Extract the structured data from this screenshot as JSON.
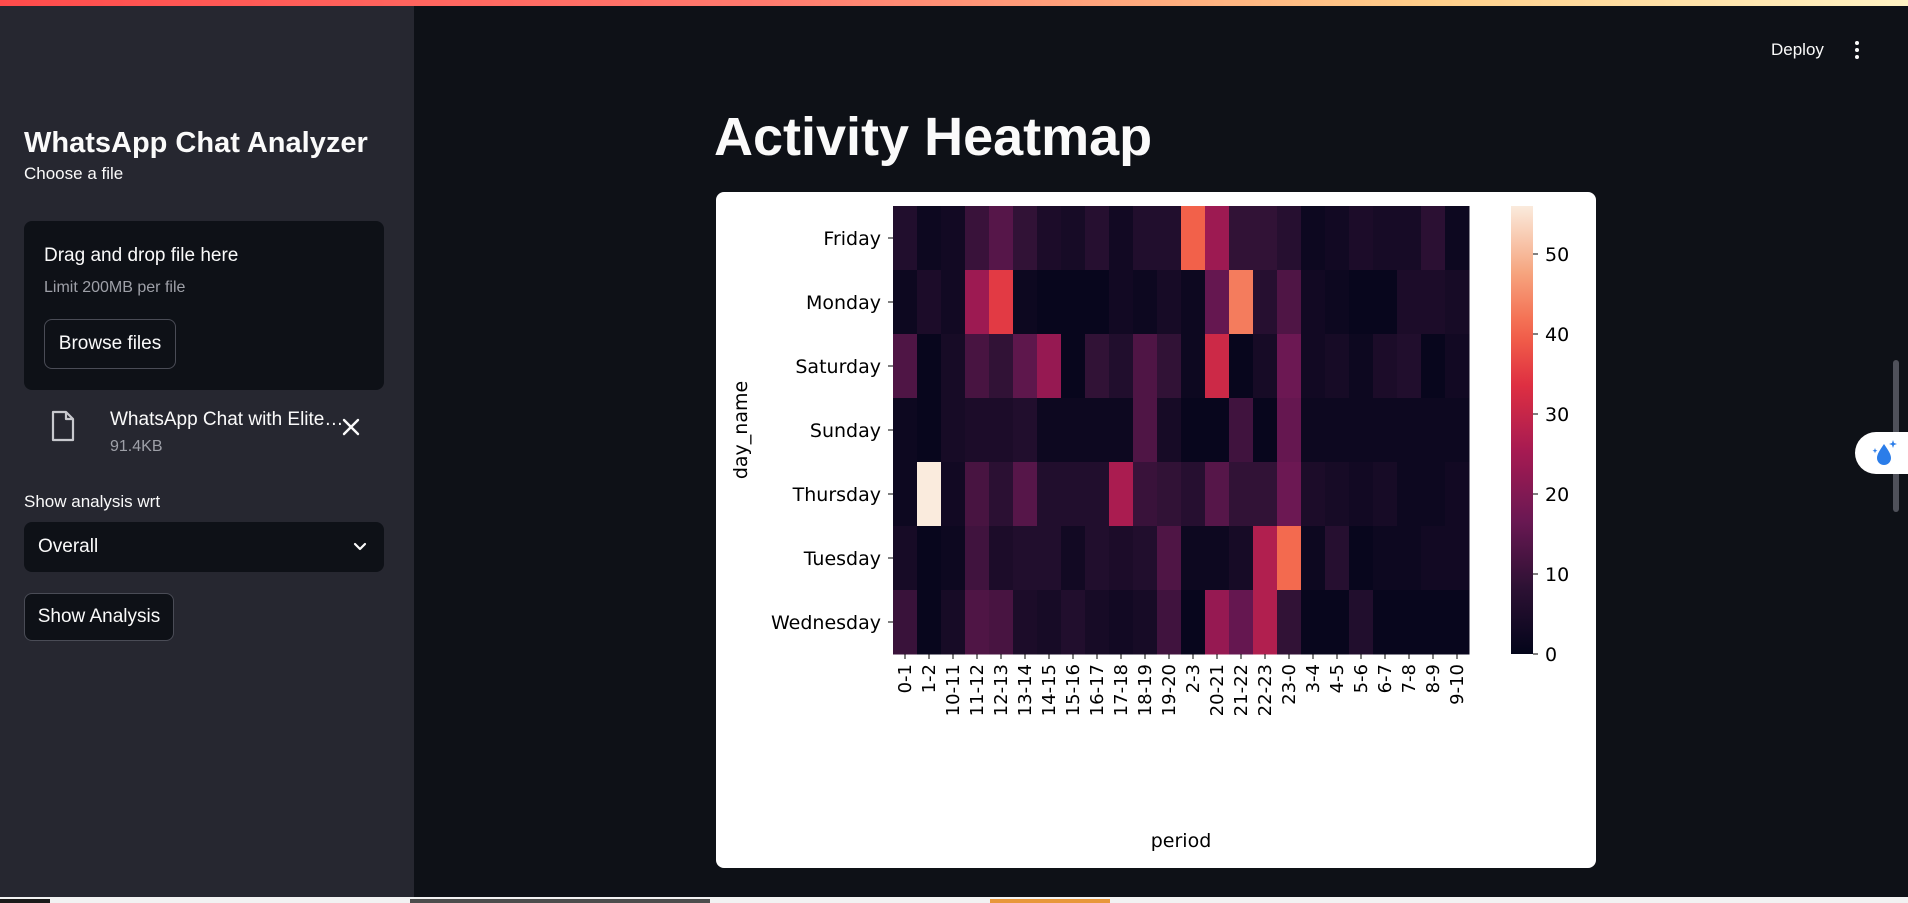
{
  "sidebar": {
    "title": "WhatsApp Chat Analyzer",
    "file_label": "Choose a file",
    "uploader": {
      "drop_text": "Drag and drop file here",
      "limit_text": "Limit 200MB per file",
      "browse_label": "Browse files"
    },
    "file": {
      "name": "WhatsApp Chat with Elite…",
      "size": "91.4KB",
      "icon": "file-icon"
    },
    "select_label": "Show analysis wrt",
    "select_value": "Overall",
    "show_button": "Show Analysis"
  },
  "header": {
    "deploy_label": "Deploy",
    "menu_icon": "vertical-dots-icon"
  },
  "main": {
    "title": "Activity Heatmap"
  },
  "colors": {
    "sidebar_bg": "#262730",
    "main_bg": "#0e1117",
    "accent": "#ff4b4b"
  },
  "chart_data": {
    "type": "heatmap",
    "xlabel": "period",
    "ylabel": "day_name",
    "x": [
      "0-1",
      "1-2",
      "10-11",
      "11-12",
      "12-13",
      "13-14",
      "14-15",
      "15-16",
      "16-17",
      "17-18",
      "18-19",
      "19-20",
      "2-3",
      "20-21",
      "21-22",
      "22-23",
      "23-0",
      "3-4",
      "4-5",
      "5-6",
      "6-7",
      "7-8",
      "8-9",
      "9-10"
    ],
    "y": [
      "Friday",
      "Monday",
      "Saturday",
      "Sunday",
      "Thursday",
      "Tuesday",
      "Wednesday"
    ],
    "values": [
      [
        6,
        2,
        3,
        10,
        14,
        9,
        5,
        4,
        7,
        3,
        6,
        6,
        40,
        24,
        9,
        9,
        7,
        2,
        3,
        5,
        4,
        4,
        8,
        2
      ],
      [
        2,
        5,
        3,
        24,
        35,
        2,
        1,
        1,
        1,
        3,
        2,
        4,
        2,
        16,
        43,
        7,
        13,
        3,
        2,
        1,
        1,
        5,
        5,
        4
      ],
      [
        13,
        1,
        4,
        12,
        9,
        15,
        23,
        1,
        9,
        6,
        13,
        9,
        2,
        31,
        1,
        4,
        17,
        3,
        4,
        2,
        5,
        6,
        1,
        3
      ],
      [
        2,
        1,
        4,
        5,
        5,
        6,
        2,
        2,
        2,
        2,
        13,
        4,
        1,
        1,
        11,
        1,
        16,
        2,
        2,
        2,
        2,
        2,
        2,
        2
      ],
      [
        2,
        56,
        3,
        12,
        8,
        14,
        6,
        6,
        6,
        26,
        10,
        9,
        7,
        14,
        9,
        9,
        17,
        5,
        4,
        3,
        4,
        2,
        2,
        3
      ],
      [
        4,
        1,
        2,
        11,
        5,
        6,
        6,
        3,
        6,
        5,
        6,
        13,
        2,
        2,
        4,
        27,
        41,
        2,
        7,
        1,
        2,
        2,
        3,
        3
      ],
      [
        10,
        1,
        4,
        13,
        12,
        5,
        4,
        6,
        4,
        3,
        4,
        11,
        1,
        23,
        16,
        27,
        9,
        1,
        1,
        6,
        1,
        1,
        1,
        1
      ]
    ],
    "vmin": 0,
    "vmax": 56,
    "colorbar_ticks": [
      0,
      10,
      20,
      30,
      40,
      50
    ],
    "colormap": "rocket"
  }
}
